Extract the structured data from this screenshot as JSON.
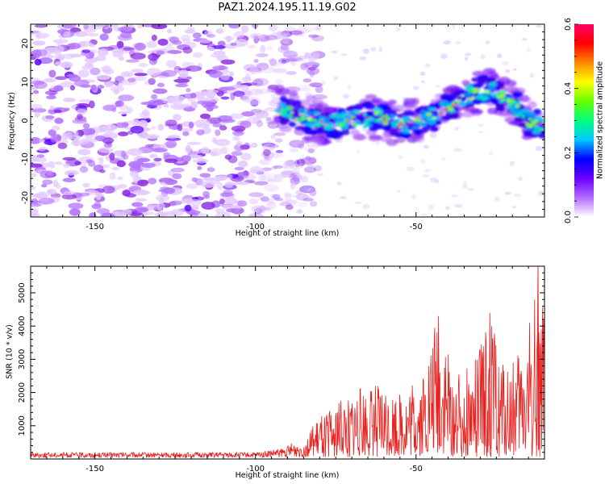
{
  "title": "PAZ1.2024.195.11.19.G02",
  "colors": {
    "signal": "#e8201e",
    "frame": "#000000",
    "low_amplitude": "#c77cff",
    "mid_amplitude": "#8a2be2",
    "high_amplitude": "#1f00ff"
  },
  "chart_data": [
    {
      "type": "heatmap",
      "title": "PAZ1.2024.195.11.19.G02",
      "xlabel": "Height of straight line (km)",
      "ylabel": "Frequency (Hz)",
      "xlim": [
        -170,
        -10
      ],
      "ylim": [
        -25,
        25
      ],
      "x_ticks": [
        -150,
        -100,
        -50
      ],
      "y_ticks": [
        -20,
        -10,
        0,
        10,
        20
      ],
      "colorbar": {
        "label": "Normalized spectral amplitude",
        "range": [
          0.0,
          0.6
        ],
        "ticks": [
          "0.0",
          "0.2",
          "0.4",
          "0.6"
        ],
        "colormap": [
          "#ffffff",
          "#b56cff",
          "#6a00ff",
          "#0000ff",
          "#00c8ff",
          "#00ff7f",
          "#66ff00",
          "#ffff00",
          "#ff8800",
          "#ff0000",
          "#ff0066"
        ]
      },
      "ridge": [
        {
          "x": -93,
          "y": 3
        },
        {
          "x": -85,
          "y": 1
        },
        {
          "x": -78,
          "y": -1
        },
        {
          "x": -70,
          "y": 0
        },
        {
          "x": -62,
          "y": 1
        },
        {
          "x": -55,
          "y": -1
        },
        {
          "x": -48,
          "y": 0
        },
        {
          "x": -40,
          "y": 3
        },
        {
          "x": -33,
          "y": 7
        },
        {
          "x": -28,
          "y": 8
        },
        {
          "x": -20,
          "y": 5
        },
        {
          "x": -15,
          "y": 0
        },
        {
          "x": -10,
          "y": -2
        }
      ],
      "noise_region_x": [
        -170,
        -92
      ]
    },
    {
      "type": "line",
      "xlabel": "Height of straight line (km)",
      "ylabel": "SNR (10 * v/v)",
      "xlim": [
        -170,
        -10
      ],
      "ylim": [
        0,
        5800
      ],
      "x_ticks": [
        -150,
        -100,
        -50
      ],
      "y_ticks": [
        1000,
        2000,
        3000,
        4000,
        5000
      ],
      "envelope": [
        {
          "x": -170,
          "y": 200
        },
        {
          "x": -100,
          "y": 200
        },
        {
          "x": -90,
          "y": 350
        },
        {
          "x": -84,
          "y": 700
        },
        {
          "x": -80,
          "y": 1200
        },
        {
          "x": -70,
          "y": 2000
        },
        {
          "x": -62,
          "y": 2200
        },
        {
          "x": -55,
          "y": 1900
        },
        {
          "x": -48,
          "y": 2600
        },
        {
          "x": -43,
          "y": 4300
        },
        {
          "x": -38,
          "y": 2500
        },
        {
          "x": -32,
          "y": 2800
        },
        {
          "x": -27,
          "y": 4400
        },
        {
          "x": -22,
          "y": 2700
        },
        {
          "x": -18,
          "y": 3200
        },
        {
          "x": -14,
          "y": 4600
        },
        {
          "x": -12,
          "y": 5800
        },
        {
          "x": -10,
          "y": 4000
        }
      ],
      "peaks": [
        {
          "x": -43,
          "y": 4300
        },
        {
          "x": -27,
          "y": 4400
        },
        {
          "x": -12,
          "y": 5800
        }
      ]
    }
  ]
}
